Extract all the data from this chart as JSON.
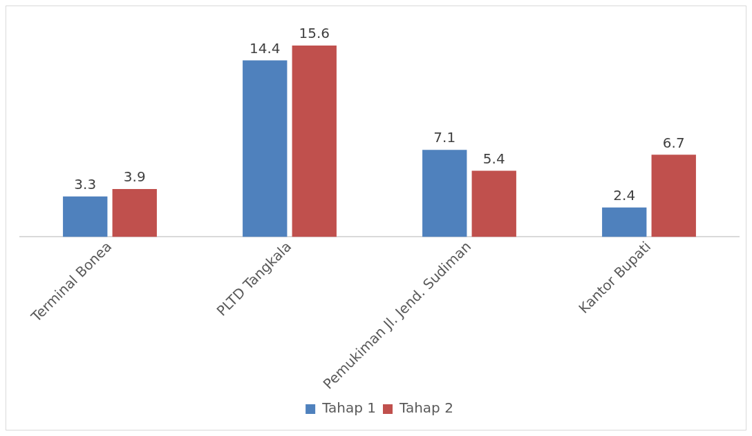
{
  "chart_data": {
    "type": "bar",
    "categories": [
      "Terminal Bonea",
      "PLTD Tangkala",
      "Pemukiman Jl. Jend. Sudiman",
      "Kantor Bupati"
    ],
    "series": [
      {
        "name": "Tahap 1",
        "color": "#4f81bd",
        "values": [
          3.3,
          14.4,
          7.1,
          2.4
        ]
      },
      {
        "name": "Tahap 2",
        "color": "#c0504d",
        "values": [
          3.9,
          15.6,
          5.4,
          6.7
        ]
      }
    ],
    "data_labels": true,
    "legend": "bottom",
    "grid": false
  }
}
